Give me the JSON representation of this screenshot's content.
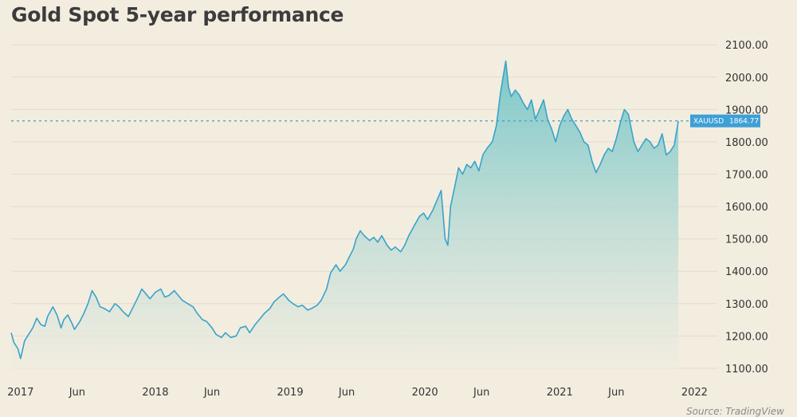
{
  "colors": {
    "background": "#f3ede0",
    "line": "#3aa3c9",
    "area_top": "#6dc3c6",
    "area_bottom": "#f3ede0",
    "grid": "#e2dccd",
    "badge": "#3da0d6"
  },
  "chart_data": {
    "type": "area",
    "title": "Gold Spot 5-year performance",
    "source": "Source: TradingView",
    "xlabel": "",
    "ylabel": "",
    "ylim": [
      1080,
      2140
    ],
    "y_ticks": [
      1100,
      1200,
      1300,
      1400,
      1500,
      1600,
      1700,
      1800,
      1900,
      2000,
      2100
    ],
    "y_tick_labels": [
      "1100.00",
      "1200.00",
      "1300.00",
      "1400.00",
      "1500.00",
      "1600.00",
      "1700.00",
      "1800.00",
      "1900.00",
      "2000.00",
      "2100.00"
    ],
    "xlim": [
      2016.93,
      2021.98
    ],
    "x_ticks": [
      2017.0,
      2017.42,
      2018.0,
      2018.42,
      2019.0,
      2019.42,
      2020.0,
      2020.42,
      2021.0,
      2021.42,
      2022.0
    ],
    "x_tick_labels": [
      "2017",
      "Jun",
      "2018",
      "Jun",
      "2019",
      "Jun",
      "2020",
      "Jun",
      "2021",
      "Jun",
      "2022"
    ],
    "current": {
      "symbol": "XAUUSD",
      "value": 1864.77,
      "value_label": "1864.77"
    },
    "series": [
      {
        "name": "XAUUSD",
        "x": [
          2016.93,
          2016.95,
          2016.98,
          2017.0,
          2017.03,
          2017.06,
          2017.09,
          2017.12,
          2017.15,
          2017.18,
          2017.2,
          2017.24,
          2017.27,
          2017.3,
          2017.32,
          2017.35,
          2017.38,
          2017.4,
          2017.44,
          2017.47,
          2017.5,
          2017.53,
          2017.56,
          2017.59,
          2017.62,
          2017.66,
          2017.7,
          2017.73,
          2017.76,
          2017.8,
          2017.83,
          2017.86,
          2017.9,
          2017.93,
          2017.96,
          2018.0,
          2018.04,
          2018.07,
          2018.1,
          2018.14,
          2018.17,
          2018.2,
          2018.24,
          2018.28,
          2018.31,
          2018.35,
          2018.38,
          2018.42,
          2018.45,
          2018.49,
          2018.52,
          2018.56,
          2018.6,
          2018.63,
          2018.67,
          2018.7,
          2018.74,
          2018.78,
          2018.81,
          2018.85,
          2018.88,
          2018.92,
          2018.95,
          2018.99,
          2019.02,
          2019.06,
          2019.09,
          2019.13,
          2019.16,
          2019.2,
          2019.23,
          2019.27,
          2019.3,
          2019.34,
          2019.37,
          2019.41,
          2019.44,
          2019.47,
          2019.49,
          2019.52,
          2019.55,
          2019.59,
          2019.62,
          2019.65,
          2019.68,
          2019.72,
          2019.75,
          2019.78,
          2019.82,
          2019.85,
          2019.88,
          2019.92,
          2019.96,
          2019.99,
          2020.02,
          2020.06,
          2020.09,
          2020.12,
          2020.15,
          2020.17,
          2020.19,
          2020.21,
          2020.23,
          2020.25,
          2020.28,
          2020.31,
          2020.34,
          2020.37,
          2020.4,
          2020.43,
          2020.46,
          2020.5,
          2020.53,
          2020.56,
          2020.58,
          2020.6,
          2020.62,
          2020.64,
          2020.67,
          2020.7,
          2020.73,
          2020.76,
          2020.79,
          2020.82,
          2020.85,
          2020.88,
          2020.91,
          2020.94,
          2020.97,
          2021.0,
          2021.03,
          2021.06,
          2021.09,
          2021.12,
          2021.15,
          2021.18,
          2021.21,
          2021.24,
          2021.27,
          2021.3,
          2021.33,
          2021.36,
          2021.39,
          2021.42,
          2021.45,
          2021.48,
          2021.51,
          2021.55,
          2021.58,
          2021.61,
          2021.64,
          2021.67,
          2021.7,
          2021.73,
          2021.76,
          2021.79,
          2021.82,
          2021.85,
          2021.88
        ],
        "values": [
          1210,
          1180,
          1160,
          1130,
          1185,
          1205,
          1225,
          1255,
          1235,
          1230,
          1260,
          1290,
          1265,
          1225,
          1250,
          1265,
          1240,
          1220,
          1245,
          1270,
          1300,
          1340,
          1320,
          1290,
          1285,
          1275,
          1300,
          1290,
          1275,
          1260,
          1285,
          1310,
          1345,
          1330,
          1315,
          1335,
          1345,
          1320,
          1325,
          1340,
          1325,
          1310,
          1300,
          1290,
          1270,
          1250,
          1245,
          1225,
          1205,
          1195,
          1210,
          1195,
          1200,
          1225,
          1230,
          1210,
          1235,
          1255,
          1270,
          1285,
          1305,
          1320,
          1330,
          1310,
          1300,
          1290,
          1295,
          1280,
          1285,
          1295,
          1310,
          1345,
          1395,
          1420,
          1400,
          1420,
          1445,
          1470,
          1500,
          1525,
          1510,
          1495,
          1505,
          1490,
          1510,
          1480,
          1465,
          1475,
          1460,
          1480,
          1510,
          1540,
          1570,
          1580,
          1560,
          1590,
          1620,
          1650,
          1500,
          1480,
          1600,
          1640,
          1680,
          1720,
          1700,
          1730,
          1720,
          1740,
          1710,
          1760,
          1780,
          1800,
          1850,
          1950,
          2000,
          2050,
          1970,
          1940,
          1960,
          1945,
          1920,
          1900,
          1930,
          1870,
          1900,
          1930,
          1870,
          1840,
          1800,
          1850,
          1880,
          1900,
          1870,
          1850,
          1830,
          1800,
          1790,
          1740,
          1705,
          1730,
          1760,
          1780,
          1770,
          1810,
          1860,
          1900,
          1885,
          1800,
          1770,
          1790,
          1810,
          1800,
          1780,
          1790,
          1825,
          1760,
          1770,
          1790,
          1864.77
        ]
      }
    ]
  }
}
